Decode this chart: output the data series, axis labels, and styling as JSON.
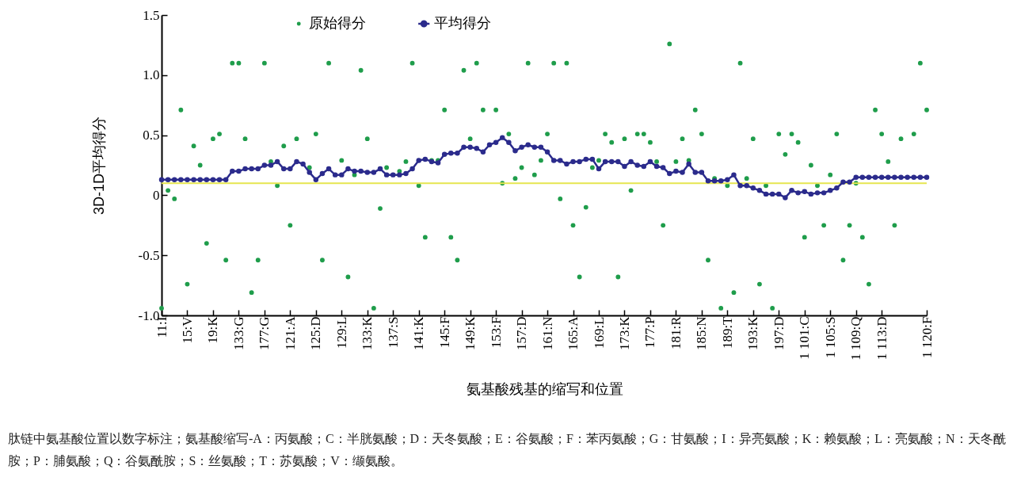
{
  "chart_data": {
    "type": "line",
    "xlabel": "氨基酸残基的缩写和位置",
    "ylabel": "3D-1D平均得分",
    "categories": [
      "11:I",
      null,
      null,
      null,
      "15:V",
      null,
      null,
      null,
      "19:K",
      null,
      null,
      null,
      "133:G",
      null,
      null,
      null,
      "177:G",
      null,
      null,
      null,
      "121:A",
      null,
      null,
      null,
      "125:D",
      null,
      null,
      null,
      "129:L",
      null,
      null,
      null,
      "133:K",
      null,
      null,
      null,
      "137:S",
      null,
      null,
      null,
      "141:K",
      null,
      null,
      null,
      "145:F",
      null,
      null,
      null,
      "149:K",
      null,
      null,
      null,
      "153:F",
      null,
      null,
      null,
      "157:D",
      null,
      null,
      null,
      "161:N",
      null,
      null,
      null,
      "165:A",
      null,
      null,
      null,
      "169:L",
      null,
      null,
      null,
      "173:K",
      null,
      null,
      null,
      "177:P",
      null,
      null,
      null,
      "181:R",
      null,
      null,
      null,
      "185:N",
      null,
      null,
      null,
      "189:T",
      null,
      null,
      null,
      "193:K",
      null,
      null,
      null,
      "197:D",
      null,
      null,
      null,
      "1 101:C",
      null,
      null,
      null,
      "1 105:S",
      null,
      null,
      null,
      "1 109:Q",
      null,
      null,
      null,
      "1 113:D",
      null,
      null,
      null,
      null,
      null,
      null,
      "1 120:F"
    ],
    "series": [
      {
        "name": "原始得分",
        "type": "scatter",
        "color": "#1f9d4b",
        "values": [
          -0.94,
          0.04,
          -0.03,
          0.71,
          -0.74,
          0.41,
          0.25,
          -0.4,
          0.47,
          0.51,
          -0.54,
          1.1,
          1.1,
          0.47,
          -0.81,
          -0.54,
          1.1,
          0.28,
          0.08,
          0.41,
          -0.25,
          0.47,
          null,
          0.23,
          0.51,
          -0.54,
          1.1,
          null,
          0.29,
          -0.68,
          0.17,
          1.04,
          0.47,
          -0.94,
          -0.11,
          0.23,
          null,
          0.2,
          0.28,
          1.1,
          0.08,
          -0.35,
          0.29,
          0.29,
          0.71,
          -0.35,
          -0.54,
          1.04,
          0.47,
          1.1,
          0.71,
          null,
          0.71,
          0.1,
          0.51,
          0.14,
          0.23,
          1.1,
          0.17,
          0.29,
          0.51,
          1.1,
          -0.03,
          1.1,
          -0.25,
          -0.68,
          -0.1,
          0.23,
          0.29,
          0.51,
          0.44,
          -0.68,
          0.47,
          0.04,
          0.51,
          0.51,
          0.44,
          0.28,
          -0.25,
          1.26,
          0.28,
          0.47,
          0.29,
          0.71,
          0.51,
          -0.54,
          0.14,
          -0.94,
          0.08,
          -0.81,
          1.1,
          0.14,
          0.47,
          -0.74,
          0.08,
          -0.94,
          0.51,
          0.34,
          0.51,
          0.44,
          -0.35,
          0.25,
          0.08,
          -0.25,
          0.17,
          0.51,
          -0.54,
          -0.25,
          0.1,
          -0.35,
          -0.74,
          0.71,
          0.51,
          0.28,
          -0.25,
          0.47,
          null,
          0.51,
          1.1,
          0.71
        ]
      },
      {
        "name": "平均得分",
        "type": "line",
        "color": "#2b2b8c",
        "values": [
          0.13,
          0.13,
          0.13,
          0.13,
          0.13,
          0.13,
          0.13,
          0.13,
          0.13,
          0.13,
          0.13,
          0.2,
          0.2,
          0.22,
          0.22,
          0.22,
          0.25,
          0.25,
          0.28,
          0.22,
          0.22,
          0.28,
          0.26,
          0.19,
          0.13,
          0.18,
          0.22,
          0.17,
          0.17,
          0.22,
          0.2,
          0.2,
          0.19,
          0.19,
          0.22,
          0.17,
          0.17,
          0.17,
          0.18,
          0.22,
          0.29,
          0.3,
          0.28,
          0.27,
          0.34,
          0.35,
          0.35,
          0.4,
          0.4,
          0.39,
          0.36,
          0.42,
          0.44,
          0.48,
          0.44,
          0.37,
          0.4,
          0.42,
          0.4,
          0.4,
          0.36,
          0.29,
          0.29,
          0.26,
          0.28,
          0.28,
          0.3,
          0.3,
          0.22,
          0.28,
          0.28,
          0.28,
          0.24,
          0.28,
          0.25,
          0.24,
          0.28,
          0.24,
          0.23,
          0.18,
          0.2,
          0.19,
          0.26,
          0.19,
          0.19,
          0.12,
          0.12,
          0.12,
          0.13,
          0.17,
          0.08,
          0.08,
          0.06,
          0.04,
          0.01,
          0.01,
          0.01,
          -0.02,
          0.04,
          0.02,
          0.03,
          0.01,
          0.02,
          0.02,
          0.04,
          0.06,
          0.11,
          0.11,
          0.15,
          0.15,
          0.15,
          0.15,
          0.15,
          0.15,
          0.15,
          0.15,
          0.15,
          0.15,
          0.15,
          0.15
        ]
      }
    ],
    "ylim": [
      -1,
      1.5
    ],
    "yticks": [
      {
        "value": -1,
        "label": "-1.0"
      },
      -0.5,
      0,
      0.5,
      {
        "value": 1,
        "label": "1.0"
      },
      1.5
    ],
    "ref_lines": [
      {
        "axis": "y",
        "value": 0.1,
        "color": "#e6e650"
      }
    ],
    "marker": "circle",
    "legend": "top",
    "annotations": [
      "肽链中氨基酸位置以数字标注；氨基酸缩写-A：丙氨酸；C：半胱氨酸；D：天冬氨酸；E：谷氨酸；F：苯丙氨酸；G：甘氨酸；I：异亮氨酸；K：赖氨酸；L：亮氨酸；N：天冬酰胺；P：脯氨酸；Q：谷氨酰胺；S：丝氨酸；T：苏氨酸；V：缬氨酸。"
    ]
  }
}
